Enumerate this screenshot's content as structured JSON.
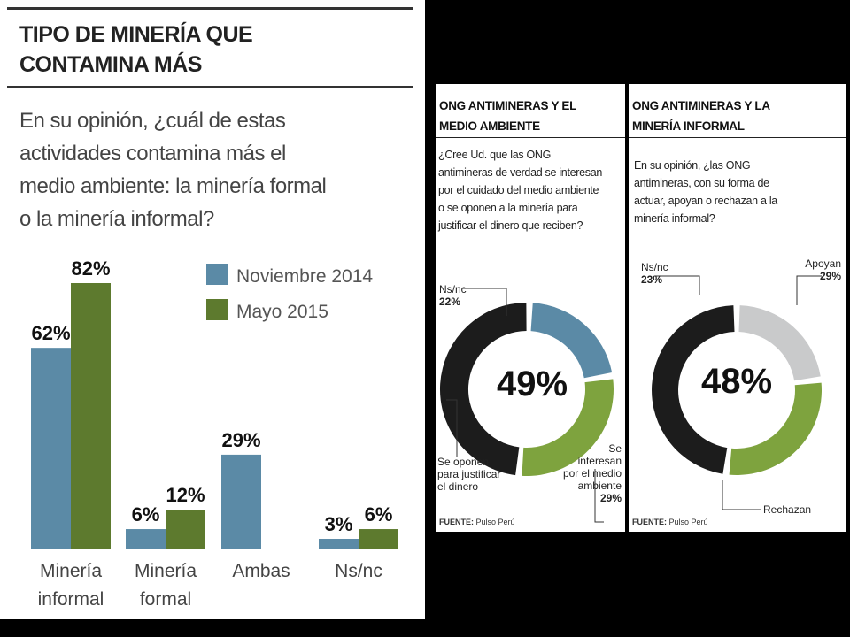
{
  "left_chart": {
    "title_lines": [
      "TIPO DE MINERÍA QUE",
      "CONTAMINA MÁS"
    ],
    "question_lines": [
      "En su opinión, ¿cuál de estas",
      "actividades contamina más el",
      "medio ambiente: la minería formal",
      "o la minería informal?"
    ]
  },
  "donut_a": {
    "title_lines": [
      "ONG ANTIMINERAS Y EL",
      "MEDIO AMBIENTE"
    ],
    "question_lines": [
      "¿Cree Ud. que las ONG",
      "antimineras de verdad se interesan",
      "por el cuidado del medio ambiente",
      "o se oponen a la minería para",
      "justificar el dinero que reciben?"
    ],
    "center_label": "49%",
    "label_nsnc": "Ns/nc",
    "value_nsnc": "22%",
    "label_oponen_lines": [
      "Se oponen",
      "para justificar",
      "el dinero"
    ],
    "label_interesan_lines": [
      "Se",
      "interesan",
      "por el medio",
      "ambiente"
    ],
    "value_interesan": "29%",
    "source_label": "FUENTE:",
    "source_value": "Pulso Perú"
  },
  "donut_b": {
    "title_lines": [
      "ONG ANTIMINERAS Y LA",
      "MINERÍA INFORMAL"
    ],
    "question_lines": [
      "En su opinión, ¿las ONG",
      "antimineras, con su forma de",
      "actuar, apoyan o rechazan a la",
      "minería informal?"
    ],
    "center_label": "48%",
    "label_nsnc": "Ns/nc",
    "value_nsnc": "23%",
    "label_apoyan": "Apoyan",
    "value_apoyan": "29%",
    "label_rechazan": "Rechazan",
    "source_label": "FUENTE:",
    "source_value": "Pulso Perú"
  },
  "chart_data": [
    {
      "type": "bar",
      "title": "TIPO DE MINERÍA QUE CONTAMINA MÁS",
      "subtitle": "En su opinión, ¿cuál de estas actividades contamina más el medio ambiente: la minería formal o la minería informal?",
      "categories": [
        [
          "Minería",
          "informal"
        ],
        [
          "Minería",
          "formal"
        ],
        [
          "Ambas"
        ],
        [
          "Ns/nc"
        ]
      ],
      "series": [
        {
          "name": "Noviembre 2014",
          "color": "#5b8aa6",
          "values": [
            62,
            6,
            29,
            3
          ],
          "labels": [
            "62%",
            "6%",
            "29%",
            "3%"
          ]
        },
        {
          "name": "Mayo 2015",
          "color": "#5d7a2e",
          "values": [
            82,
            12,
            null,
            6
          ],
          "labels": [
            "82%",
            "12%",
            "",
            "6%"
          ]
        }
      ],
      "ylim": [
        0,
        100
      ],
      "legend": "top-right",
      "grid": false
    },
    {
      "type": "pie",
      "title": "ONG ANTIMINERAS Y EL MEDIO AMBIENTE",
      "donut": true,
      "center_label": "49%",
      "slices": [
        {
          "label": "Se oponen para justificar el dinero",
          "value": 49,
          "color": "#1c1c1c"
        },
        {
          "label": "Ns/nc",
          "value": 22,
          "color": "#5b8aa6"
        },
        {
          "label": "Se interesan por el medio ambiente",
          "value": 29,
          "color": "#7ea33e"
        }
      ]
    },
    {
      "type": "pie",
      "title": "ONG ANTIMINERAS Y LA MINERÍA INFORMAL",
      "donut": true,
      "center_label": "48%",
      "slices": [
        {
          "label": "Rechazan",
          "value": 48,
          "color": "#1c1c1c"
        },
        {
          "label": "Ns/nc",
          "value": 23,
          "color": "#c9cacb"
        },
        {
          "label": "Apoyan",
          "value": 29,
          "color": "#7ea33e"
        }
      ]
    }
  ]
}
